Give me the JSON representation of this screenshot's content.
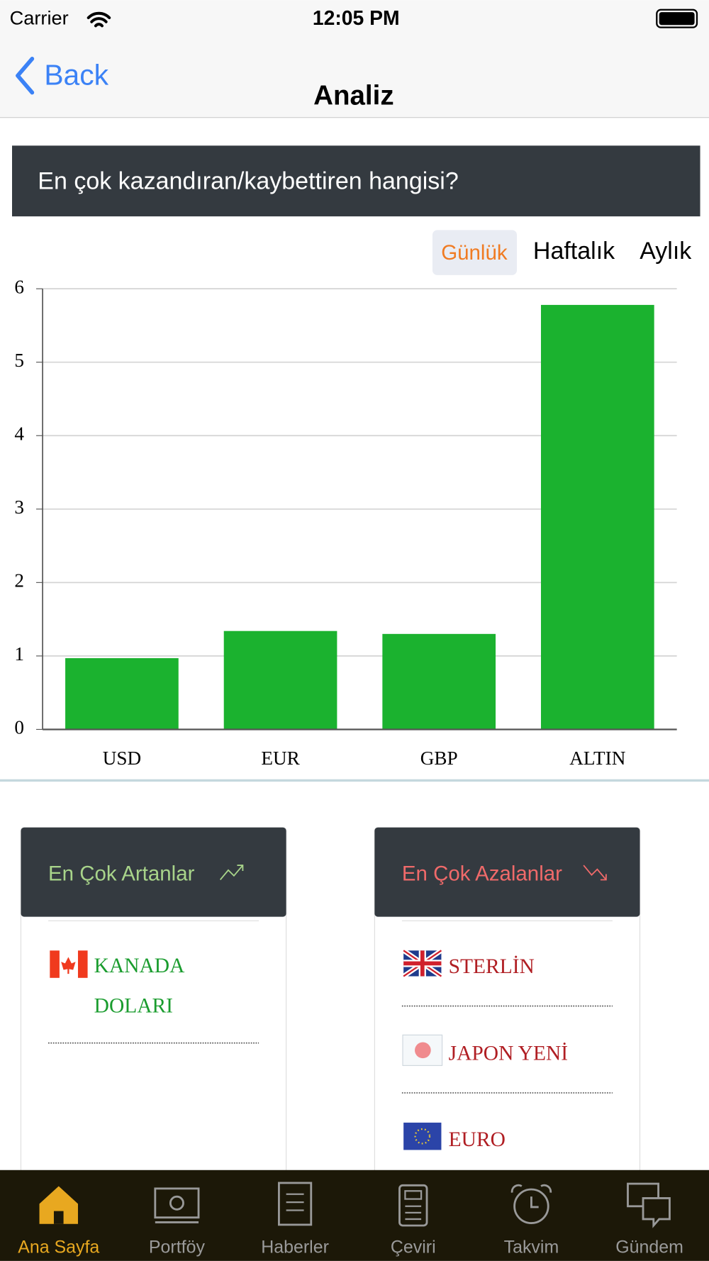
{
  "status_bar": {
    "carrier": "Carrier",
    "time": "12:05 PM"
  },
  "nav": {
    "back": "Back",
    "title": "Analiz"
  },
  "section_title": "En çok kazandıran/kaybettiren hangisi?",
  "tabs": [
    "Günlük",
    "Haftalık",
    "Aylık"
  ],
  "chart_data": {
    "type": "bar",
    "categories": [
      "USD",
      "EUR",
      "GBP",
      "ALTIN"
    ],
    "values": [
      0.97,
      1.34,
      1.3,
      5.78
    ],
    "color": "#1bb22f",
    "ylim": [
      0,
      6
    ],
    "yticks": [
      0,
      1,
      2,
      3,
      4,
      5,
      6
    ],
    "grid": true
  },
  "gainers": {
    "title": "En Çok Artanlar",
    "items": [
      "KANADA DOLARI"
    ]
  },
  "losers": {
    "title": "En Çok Azalanlar",
    "items": [
      "STERLİN",
      "JAPON YENİ",
      "EURO"
    ]
  },
  "tab_bar": [
    "Ana Sayfa",
    "Portföy",
    "Haberler",
    "Çeviri",
    "Takvim",
    "Gündem"
  ]
}
